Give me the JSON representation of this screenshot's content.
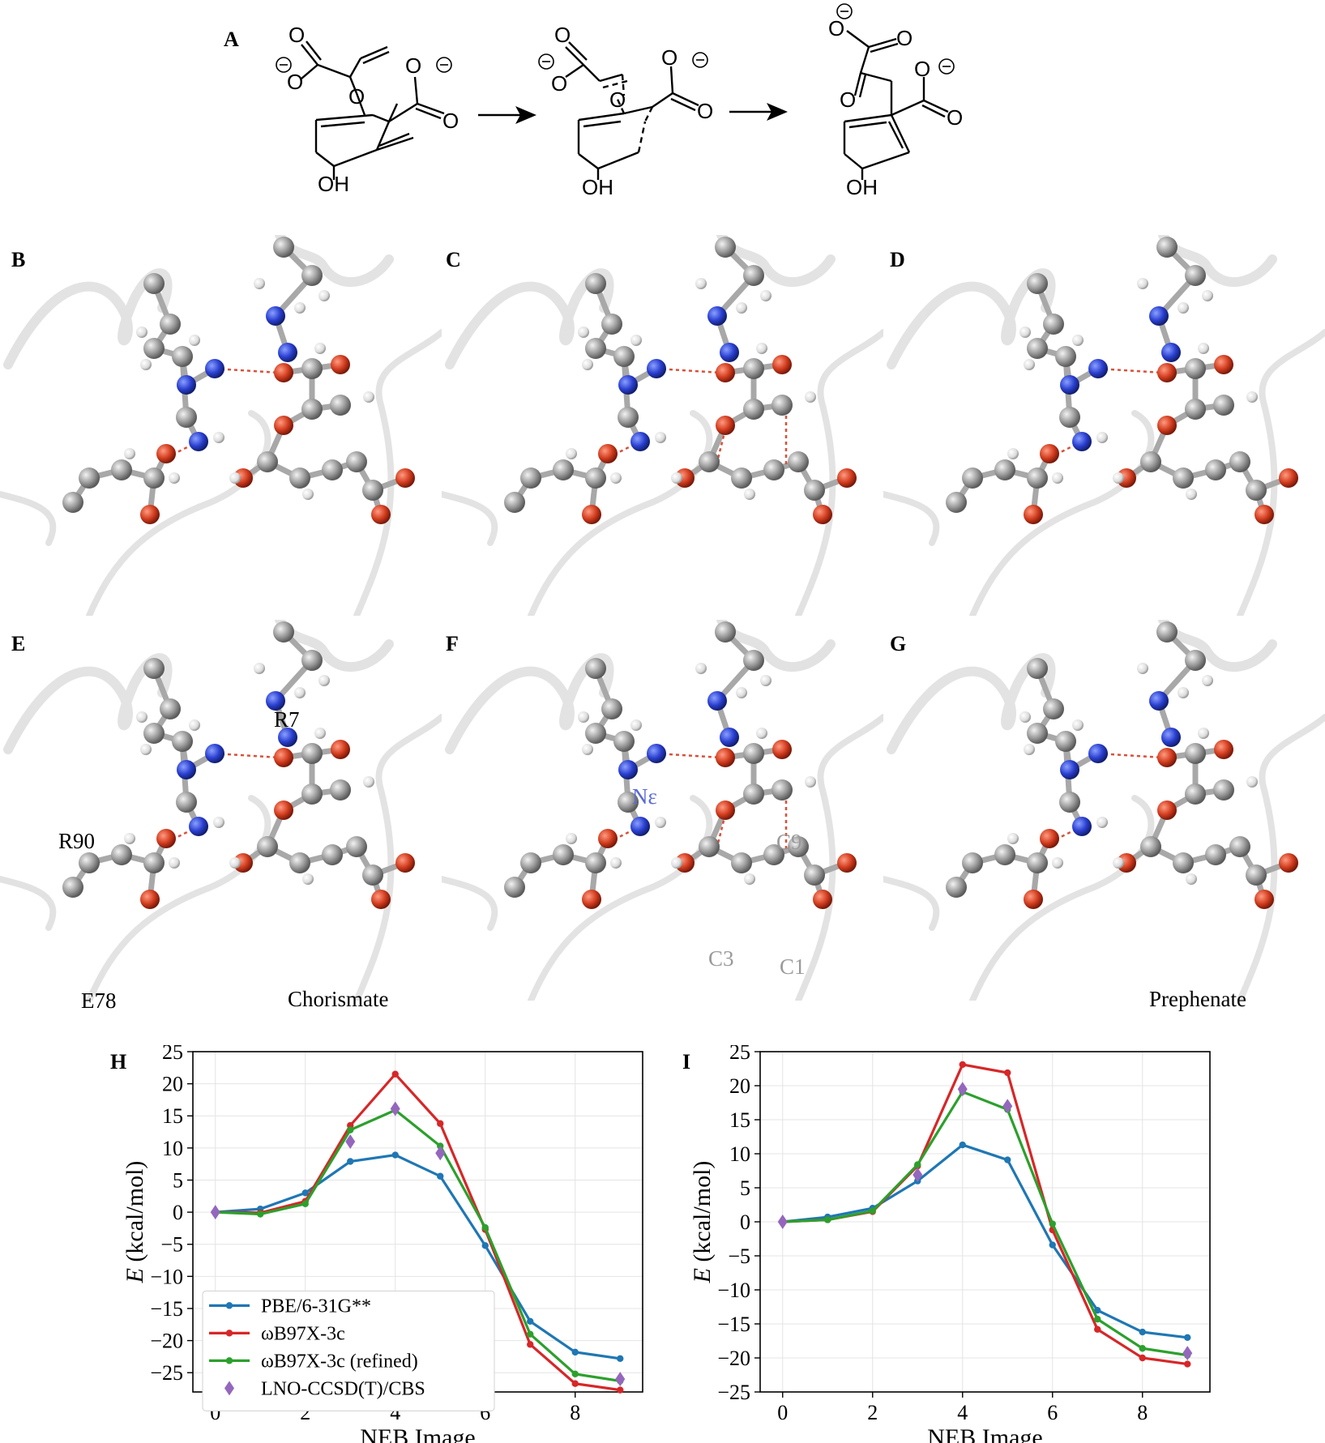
{
  "panels": {
    "a": "A",
    "b": "B",
    "c": "C",
    "d": "D",
    "e": "E",
    "f": "F",
    "g": "G",
    "h": "H",
    "i": "I"
  },
  "scheme": {
    "oh": "OH",
    "o": "O",
    "charge": "⊖"
  },
  "structure_labels": {
    "r7": "R7",
    "r90": "R90",
    "e78": "E78",
    "chorismate": "Chorismate",
    "prephenate": "Prephenate",
    "n_epsilon": "Nε",
    "c9": "C9",
    "c3": "C3",
    "c1": "C1"
  },
  "colors": {
    "pbe": "#1f77b4",
    "wb97x": "#d62728",
    "wb97x_refined": "#2ca02c",
    "lno": "#9467bd",
    "oxygen": "#c8321e",
    "nitrogen": "#1e3cc8",
    "carbon": "#8c8c8c",
    "hydrogen": "#e8e8e8"
  },
  "chart_data": [
    {
      "type": "line",
      "panel": "H",
      "xlabel": "NEB Image",
      "ylabel": "E (kcal/mol)",
      "xlim": [
        -0.5,
        9.5
      ],
      "ylim": [
        -28,
        25
      ],
      "xticks": [
        0,
        2,
        4,
        6,
        8
      ],
      "yticks": [
        25,
        20,
        15,
        10,
        5,
        0,
        -5,
        -10,
        -15,
        -20,
        -25
      ],
      "grid": true,
      "legend": "lower-left",
      "x": [
        0,
        1,
        2,
        3,
        4,
        5,
        6,
        7,
        8,
        9
      ],
      "series": [
        {
          "name": "PBE/6-31G**",
          "color": "#1f77b4",
          "marker": "circle",
          "line": true,
          "values": [
            0,
            0.5,
            3.0,
            7.9,
            8.9,
            5.6,
            -5.2,
            -17.0,
            -21.8,
            -22.8
          ]
        },
        {
          "name": "ωB97X-3c",
          "color": "#d62728",
          "marker": "circle",
          "line": true,
          "values": [
            0,
            -0.1,
            1.7,
            13.5,
            21.5,
            13.8,
            -2.7,
            -20.6,
            -26.7,
            -27.7
          ]
        },
        {
          "name": "ωB97X-3c (refined)",
          "color": "#2ca02c",
          "marker": "circle",
          "line": true,
          "values": [
            0,
            -0.3,
            1.3,
            12.8,
            15.9,
            10.3,
            -2.4,
            -19.0,
            -25.2,
            -26.3
          ]
        },
        {
          "name": "LNO-CCSD(T)/CBS",
          "color": "#9467bd",
          "marker": "diamond",
          "line": false,
          "x": [
            0,
            3,
            4,
            5,
            9
          ],
          "values": [
            0,
            11.0,
            16.1,
            9.2,
            -26.0
          ]
        }
      ]
    },
    {
      "type": "line",
      "panel": "I",
      "xlabel": "NEB Image",
      "ylabel": "E (kcal/mol)",
      "xlim": [
        -0.5,
        9.5
      ],
      "ylim": [
        -25,
        25
      ],
      "xticks": [
        0,
        2,
        4,
        6,
        8
      ],
      "yticks": [
        25,
        20,
        15,
        10,
        5,
        0,
        -5,
        -10,
        -15,
        -20,
        -25
      ],
      "grid": true,
      "x": [
        0,
        1,
        2,
        3,
        4,
        5,
        6,
        7,
        8,
        9
      ],
      "series": [
        {
          "name": "PBE/6-31G**",
          "color": "#1f77b4",
          "marker": "circle",
          "line": true,
          "values": [
            0,
            0.7,
            2.0,
            6.0,
            11.3,
            9.1,
            -3.4,
            -13.0,
            -16.2,
            -17.0
          ]
        },
        {
          "name": "ωB97X-3c",
          "color": "#d62728",
          "marker": "circle",
          "line": true,
          "values": [
            0,
            0.3,
            1.5,
            8.2,
            23.1,
            21.9,
            -1.2,
            -15.8,
            -20.0,
            -20.9
          ]
        },
        {
          "name": "ωB97X-3c (refined)",
          "color": "#2ca02c",
          "marker": "circle",
          "line": true,
          "values": [
            0,
            0.3,
            1.6,
            8.4,
            19.1,
            16.5,
            -0.3,
            -14.3,
            -18.6,
            -19.6
          ]
        },
        {
          "name": "LNO-CCSD(T)/CBS",
          "color": "#9467bd",
          "marker": "diamond",
          "line": false,
          "x": [
            0,
            3,
            4,
            5,
            9
          ],
          "values": [
            0,
            6.9,
            19.5,
            17.0,
            -19.3
          ]
        }
      ]
    }
  ]
}
